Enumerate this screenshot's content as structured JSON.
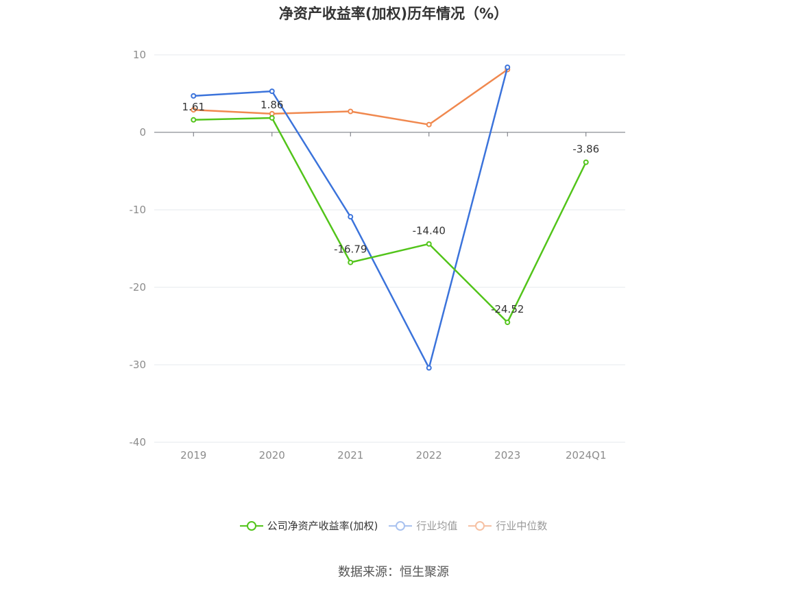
{
  "chart_data": {
    "type": "line",
    "title": "净资产收益率(加权)历年情况（%）",
    "categories": [
      "2019",
      "2020",
      "2021",
      "2022",
      "2023",
      "2024Q1"
    ],
    "ylim": [
      -40,
      10
    ],
    "yticks": [
      10,
      0,
      -10,
      -20,
      -30,
      -40
    ],
    "grid": true,
    "legend_position": "bottom",
    "series": [
      {
        "name": "公司净资产收益率(加权)",
        "color": "#52c41a",
        "values": [
          1.61,
          1.86,
          -16.79,
          -14.4,
          -24.52,
          -3.86
        ],
        "labels": [
          "1.61",
          "1.86",
          "-16.79",
          "-14.40",
          "-24.52",
          "-3.86"
        ]
      },
      {
        "name": "行业均值",
        "color": "#3b73db",
        "values": [
          4.7,
          5.3,
          -10.9,
          -30.4,
          8.4,
          null
        ]
      },
      {
        "name": "行业中位数",
        "color": "#f0884e",
        "values": [
          2.9,
          2.4,
          2.7,
          1.0,
          8.1,
          null
        ]
      }
    ]
  },
  "source": "数据来源：恒生聚源"
}
